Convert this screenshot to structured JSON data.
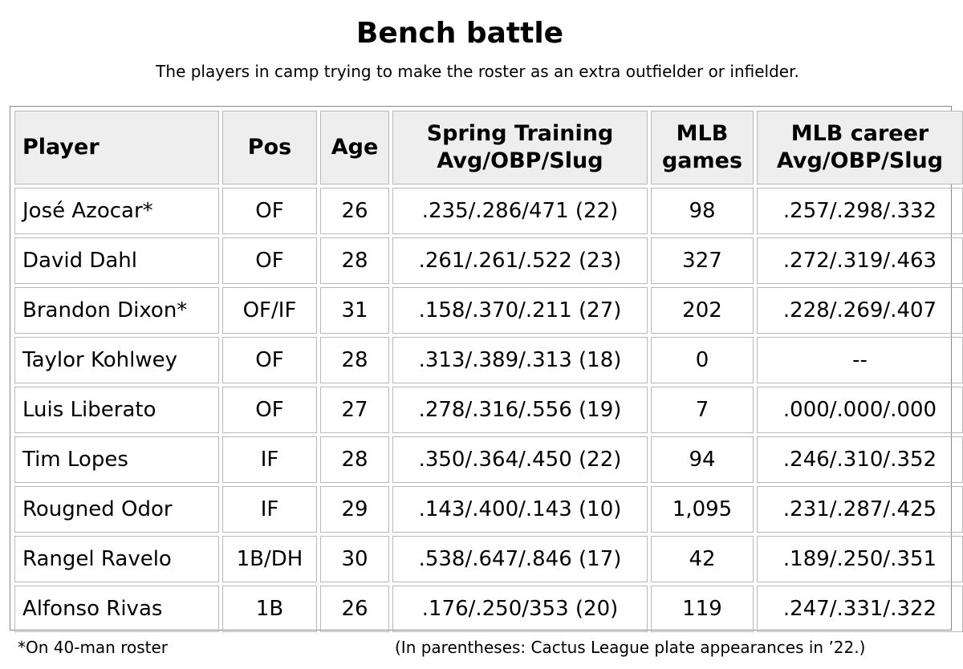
{
  "title": "Bench battle",
  "subtitle": "The players in camp trying to make the roster as an extra outfielder or infielder.",
  "table": {
    "headers": {
      "player": "Player",
      "pos": "Pos",
      "age": "Age",
      "spring_line1": "Spring Training",
      "spring_line2": "Avg/OBP/Slug",
      "games_line1": "MLB",
      "games_line2": "games",
      "career_line1": "MLB career",
      "career_line2": "Avg/OBP/Slug"
    },
    "rows": [
      {
        "player": "José Azocar*",
        "pos": "OF",
        "age": "26",
        "spring": ".235/.286/471 (22)",
        "games": "98",
        "career": ".257/.298/.332"
      },
      {
        "player": "David Dahl",
        "pos": "OF",
        "age": "28",
        "spring": ".261/.261/.522 (23)",
        "games": "327",
        "career": ".272/.319/.463"
      },
      {
        "player": "Brandon Dixon*",
        "pos": "OF/IF",
        "age": "31",
        "spring": ".158/.370/.211 (27)",
        "games": "202",
        "career": ".228/.269/.407"
      },
      {
        "player": "Taylor Kohlwey",
        "pos": "OF",
        "age": "28",
        "spring": ".313/.389/.313 (18)",
        "games": "0",
        "career": "--"
      },
      {
        "player": "Luis Liberato",
        "pos": "OF",
        "age": "27",
        "spring": ".278/.316/.556 (19)",
        "games": "7",
        "career": ".000/.000/.000"
      },
      {
        "player": "Tim Lopes",
        "pos": "IF",
        "age": "28",
        "spring": ".350/.364/.450 (22)",
        "games": "94",
        "career": ".246/.310/.352"
      },
      {
        "player": "Rougned Odor",
        "pos": "IF",
        "age": "29",
        "spring": ".143/.400/.143 (10)",
        "games": "1,095",
        "career": ".231/.287/.425"
      },
      {
        "player": "Rangel Ravelo",
        "pos": "1B/DH",
        "age": "30",
        "spring": ".538/.647/.846 (17)",
        "games": "42",
        "career": ".189/.250/.351"
      },
      {
        "player": "Alfonso Rivas",
        "pos": "1B",
        "age": "26",
        "spring": ".176/.250/353 (20)",
        "games": "119",
        "career": ".247/.331/.322"
      }
    ]
  },
  "footnotes": {
    "roster_note": "*On 40-man roster",
    "pa_note": "(In parentheses: Cactus League plate appearances in ’22.)"
  }
}
